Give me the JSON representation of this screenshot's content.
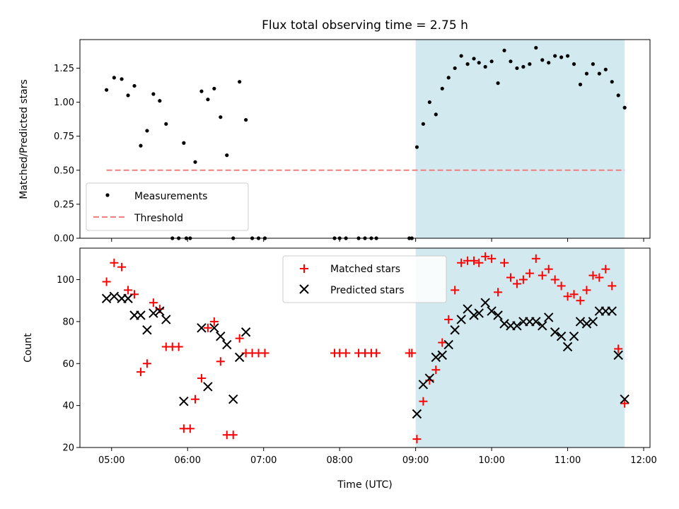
{
  "chart_data": [
    {
      "type": "scatter",
      "title": "Flux total observing time = 2.75 h",
      "xlabel": "",
      "ylabel": "Matched/Predicted stars",
      "xlim": [
        "04:35",
        "12:05"
      ],
      "ylim": [
        0,
        1.46
      ],
      "x_ticks": [
        "05:00",
        "06:00",
        "07:00",
        "08:00",
        "09:00",
        "10:00",
        "11:00",
        "12:00"
      ],
      "y_ticks": [
        "0.00",
        "0.25",
        "0.50",
        "0.75",
        "1.00",
        "1.25"
      ],
      "highlight_span": {
        "start": "09:00",
        "end": "11:45",
        "color": "#d2e9f0"
      },
      "legend": {
        "position": "lower-left",
        "entries": [
          "Measurements",
          "Threshold"
        ]
      },
      "series": [
        {
          "name": "Measurements",
          "marker": "dot",
          "color": "#000000",
          "points": [
            [
              "04:56",
              1.09
            ],
            [
              "05:02",
              1.18
            ],
            [
              "05:08",
              1.17
            ],
            [
              "05:13",
              1.05
            ],
            [
              "05:18",
              1.12
            ],
            [
              "05:23",
              0.68
            ],
            [
              "05:28",
              0.79
            ],
            [
              "05:33",
              1.06
            ],
            [
              "05:38",
              1.01
            ],
            [
              "05:43",
              0.84
            ],
            [
              "05:48",
              0.0
            ],
            [
              "05:53",
              0.0
            ],
            [
              "05:57",
              0.7
            ],
            [
              "05:59",
              0.0
            ],
            [
              "06:02",
              0.0
            ],
            [
              "06:06",
              0.56
            ],
            [
              "06:11",
              1.08
            ],
            [
              "06:16",
              1.02
            ],
            [
              "06:21",
              1.1
            ],
            [
              "06:26",
              0.89
            ],
            [
              "06:31",
              0.61
            ],
            [
              "06:36",
              0.0
            ],
            [
              "06:41",
              1.15
            ],
            [
              "06:46",
              0.87
            ],
            [
              "06:51",
              0.0
            ],
            [
              "06:56",
              0.0
            ],
            [
              "07:01",
              0.0
            ],
            [
              "07:56",
              0.0
            ],
            [
              "08:00",
              0.0
            ],
            [
              "08:05",
              0.0
            ],
            [
              "08:15",
              0.0
            ],
            [
              "08:20",
              0.0
            ],
            [
              "08:25",
              0.0
            ],
            [
              "08:29",
              0.0
            ],
            [
              "08:55",
              0.0
            ],
            [
              "08:57",
              0.0
            ],
            [
              "09:01",
              0.67
            ],
            [
              "09:06",
              0.84
            ],
            [
              "09:11",
              1.0
            ],
            [
              "09:16",
              0.91
            ],
            [
              "09:21",
              1.1
            ],
            [
              "09:26",
              1.18
            ],
            [
              "09:31",
              1.25
            ],
            [
              "09:36",
              1.34
            ],
            [
              "09:41",
              1.28
            ],
            [
              "09:46",
              1.32
            ],
            [
              "09:50",
              1.29
            ],
            [
              "09:55",
              1.26
            ],
            [
              "10:00",
              1.3
            ],
            [
              "10:05",
              1.14
            ],
            [
              "10:10",
              1.38
            ],
            [
              "10:15",
              1.3
            ],
            [
              "10:20",
              1.25
            ],
            [
              "10:25",
              1.26
            ],
            [
              "10:30",
              1.28
            ],
            [
              "10:35",
              1.4
            ],
            [
              "10:40",
              1.31
            ],
            [
              "10:45",
              1.29
            ],
            [
              "10:50",
              1.34
            ],
            [
              "10:55",
              1.33
            ],
            [
              "11:00",
              1.34
            ],
            [
              "11:05",
              1.28
            ],
            [
              "11:10",
              1.13
            ],
            [
              "11:15",
              1.21
            ],
            [
              "11:20",
              1.28
            ],
            [
              "11:25",
              1.21
            ],
            [
              "11:30",
              1.24
            ],
            [
              "11:35",
              1.15
            ],
            [
              "11:40",
              1.05
            ],
            [
              "11:45",
              0.96
            ]
          ]
        },
        {
          "name": "Threshold",
          "type": "line",
          "style": "dashed",
          "color": "#f08080",
          "points": [
            [
              "04:56",
              0.5
            ],
            [
              "11:45",
              0.5
            ]
          ]
        }
      ]
    },
    {
      "type": "scatter",
      "title": "",
      "xlabel": "Time (UTC)",
      "ylabel": "Count",
      "xlim": [
        "04:35",
        "12:05"
      ],
      "ylim": [
        20,
        115
      ],
      "x_ticks": [
        "05:00",
        "06:00",
        "07:00",
        "08:00",
        "09:00",
        "10:00",
        "11:00",
        "12:00"
      ],
      "y_ticks": [
        "20",
        "40",
        "60",
        "80",
        "100"
      ],
      "highlight_span": {
        "start": "09:00",
        "end": "11:45",
        "color": "#d2e9f0"
      },
      "legend": {
        "position": "upper-center",
        "entries": [
          "Matched stars",
          "Predicted stars"
        ]
      },
      "series": [
        {
          "name": "Matched stars",
          "marker": "plus",
          "color": "#ff0000",
          "points": [
            [
              "04:56",
              99
            ],
            [
              "05:02",
              108
            ],
            [
              "05:08",
              106
            ],
            [
              "05:13",
              95
            ],
            [
              "05:18",
              93
            ],
            [
              "05:23",
              56
            ],
            [
              "05:28",
              60
            ],
            [
              "05:33",
              89
            ],
            [
              "05:38",
              86
            ],
            [
              "05:43",
              68
            ],
            [
              "05:48",
              68
            ],
            [
              "05:53",
              68
            ],
            [
              "05:57",
              29
            ],
            [
              "06:02",
              29
            ],
            [
              "06:06",
              43
            ],
            [
              "06:11",
              53
            ],
            [
              "06:16",
              77
            ],
            [
              "06:21",
              80
            ],
            [
              "06:26",
              61
            ],
            [
              "06:31",
              26
            ],
            [
              "06:36",
              26
            ],
            [
              "06:41",
              72
            ],
            [
              "06:46",
              65
            ],
            [
              "06:51",
              65
            ],
            [
              "06:56",
              65
            ],
            [
              "07:01",
              65
            ],
            [
              "07:56",
              65
            ],
            [
              "08:00",
              65
            ],
            [
              "08:05",
              65
            ],
            [
              "08:15",
              65
            ],
            [
              "08:20",
              65
            ],
            [
              "08:25",
              65
            ],
            [
              "08:29",
              65
            ],
            [
              "08:55",
              65
            ],
            [
              "08:57",
              65
            ],
            [
              "09:01",
              24
            ],
            [
              "09:06",
              42
            ],
            [
              "09:11",
              52
            ],
            [
              "09:16",
              57
            ],
            [
              "09:21",
              70
            ],
            [
              "09:26",
              81
            ],
            [
              "09:31",
              95
            ],
            [
              "09:36",
              108
            ],
            [
              "09:41",
              109
            ],
            [
              "09:46",
              109
            ],
            [
              "09:50",
              108
            ],
            [
              "09:55",
              111
            ],
            [
              "10:00",
              110
            ],
            [
              "10:05",
              94
            ],
            [
              "10:10",
              108
            ],
            [
              "10:15",
              101
            ],
            [
              "10:20",
              98
            ],
            [
              "10:25",
              100
            ],
            [
              "10:30",
              103
            ],
            [
              "10:35",
              110
            ],
            [
              "10:40",
              102
            ],
            [
              "10:45",
              105
            ],
            [
              "10:50",
              100
            ],
            [
              "10:55",
              97
            ],
            [
              "11:00",
              92
            ],
            [
              "11:05",
              93
            ],
            [
              "11:10",
              90
            ],
            [
              "11:15",
              95
            ],
            [
              "11:20",
              102
            ],
            [
              "11:25",
              101
            ],
            [
              "11:30",
              105
            ],
            [
              "11:35",
              97
            ],
            [
              "11:40",
              67
            ],
            [
              "11:45",
              41
            ]
          ]
        },
        {
          "name": "Predicted stars",
          "marker": "x",
          "color": "#000000",
          "points": [
            [
              "04:56",
              91
            ],
            [
              "05:02",
              92
            ],
            [
              "05:08",
              91
            ],
            [
              "05:13",
              91
            ],
            [
              "05:18",
              83
            ],
            [
              "05:23",
              83
            ],
            [
              "05:28",
              76
            ],
            [
              "05:33",
              84
            ],
            [
              "05:38",
              85
            ],
            [
              "05:43",
              81
            ],
            [
              "05:57",
              42
            ],
            [
              "06:11",
              77
            ],
            [
              "06:16",
              49
            ],
            [
              "06:21",
              77
            ],
            [
              "06:26",
              73
            ],
            [
              "06:31",
              69
            ],
            [
              "06:36",
              43
            ],
            [
              "06:41",
              63
            ],
            [
              "06:46",
              75
            ],
            [
              "09:01",
              36
            ],
            [
              "09:06",
              50
            ],
            [
              "09:11",
              53
            ],
            [
              "09:16",
              63
            ],
            [
              "09:21",
              64
            ],
            [
              "09:26",
              69
            ],
            [
              "09:31",
              76
            ],
            [
              "09:36",
              81
            ],
            [
              "09:41",
              86
            ],
            [
              "09:46",
              83
            ],
            [
              "09:50",
              84
            ],
            [
              "09:55",
              89
            ],
            [
              "10:00",
              85
            ],
            [
              "10:05",
              83
            ],
            [
              "10:10",
              79
            ],
            [
              "10:15",
              78
            ],
            [
              "10:20",
              78
            ],
            [
              "10:25",
              80
            ],
            [
              "10:30",
              80
            ],
            [
              "10:35",
              80
            ],
            [
              "10:40",
              78
            ],
            [
              "10:45",
              82
            ],
            [
              "10:50",
              75
            ],
            [
              "10:55",
              73
            ],
            [
              "11:00",
              68
            ],
            [
              "11:05",
              73
            ],
            [
              "11:10",
              80
            ],
            [
              "11:15",
              79
            ],
            [
              "11:20",
              80
            ],
            [
              "11:25",
              85
            ],
            [
              "11:30",
              85
            ],
            [
              "11:35",
              85
            ],
            [
              "11:40",
              64
            ],
            [
              "11:45",
              43
            ]
          ]
        }
      ]
    }
  ]
}
